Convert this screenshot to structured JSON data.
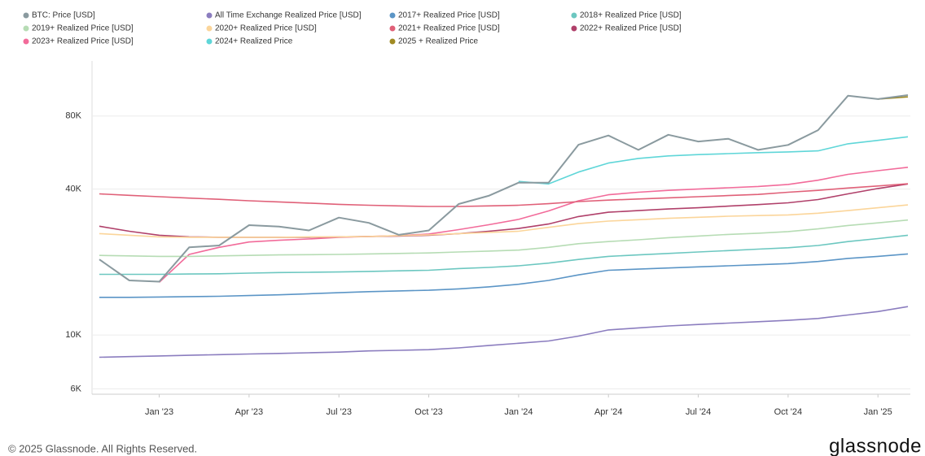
{
  "chart_data": {
    "type": "line",
    "yscale": "log",
    "grid": true,
    "legend": "top",
    "x": [
      "2022-11",
      "2022-12",
      "2023-01",
      "2023-02",
      "2023-03",
      "2023-04",
      "2023-05",
      "2023-06",
      "2023-07",
      "2023-08",
      "2023-09",
      "2023-10",
      "2023-11",
      "2023-12",
      "2024-01",
      "2024-02",
      "2024-03",
      "2024-04",
      "2024-05",
      "2024-06",
      "2024-07",
      "2024-08",
      "2024-09",
      "2024-10",
      "2024-11",
      "2024-12",
      "2025-01",
      "2025-02"
    ],
    "xlim": [
      "2022-11",
      "2025-02"
    ],
    "xticks": [
      {
        "value": "2023-01",
        "label": "Jan '23"
      },
      {
        "value": "2023-04",
        "label": "Apr '23"
      },
      {
        "value": "2023-07",
        "label": "Jul '23"
      },
      {
        "value": "2023-10",
        "label": "Oct '23"
      },
      {
        "value": "2024-01",
        "label": "Jan '24"
      },
      {
        "value": "2024-04",
        "label": "Apr '24"
      },
      {
        "value": "2024-07",
        "label": "Jul '24"
      },
      {
        "value": "2024-10",
        "label": "Oct '24"
      },
      {
        "value": "2025-01",
        "label": "Jan '25"
      }
    ],
    "ylim": [
      5700,
      135000
    ],
    "yticks": [
      {
        "value": 6000,
        "label": "6K"
      },
      {
        "value": 10000,
        "label": "10K"
      },
      {
        "value": 40000,
        "label": "40K"
      },
      {
        "value": 80000,
        "label": "80K"
      }
    ],
    "series": [
      {
        "name": "BTC: Price [USD]",
        "color": "#8a9a9f",
        "values": [
          20500,
          16800,
          16600,
          23000,
          23400,
          28400,
          28000,
          27000,
          30500,
          29000,
          25900,
          27000,
          34700,
          37500,
          42500,
          42500,
          60900,
          66500,
          58000,
          67000,
          62800,
          64500,
          58000,
          60800,
          70000,
          97000,
          94000,
          97600
        ]
      },
      {
        "name": "All Time Exchange Realized Price [USD]",
        "color": "#8b7dbf",
        "values": [
          8100,
          8150,
          8200,
          8250,
          8300,
          8350,
          8400,
          8450,
          8500,
          8600,
          8650,
          8700,
          8850,
          9050,
          9250,
          9450,
          9900,
          10500,
          10700,
          10900,
          11050,
          11200,
          11350,
          11500,
          11700,
          12100,
          12500,
          13100
        ]
      },
      {
        "name": "2017+ Realized Price [USD]",
        "color": "#5b95c6",
        "values": [
          14300,
          14300,
          14350,
          14400,
          14450,
          14550,
          14650,
          14800,
          14950,
          15100,
          15200,
          15300,
          15500,
          15800,
          16200,
          16800,
          17700,
          18500,
          18700,
          18900,
          19100,
          19300,
          19500,
          19700,
          20100,
          20700,
          21100,
          21600
        ]
      },
      {
        "name": "2018+ Realized Price [USD]",
        "color": "#6cc7c0",
        "values": [
          17800,
          17800,
          17800,
          17850,
          17900,
          18000,
          18100,
          18150,
          18200,
          18300,
          18400,
          18500,
          18800,
          19000,
          19300,
          19800,
          20500,
          21100,
          21400,
          21700,
          22000,
          22300,
          22600,
          22900,
          23400,
          24300,
          25000,
          25800
        ]
      },
      {
        "name": "2019+ Realized Price [USD]",
        "color": "#b6dcb4",
        "values": [
          21300,
          21200,
          21100,
          21100,
          21200,
          21300,
          21400,
          21450,
          21500,
          21600,
          21700,
          21800,
          22000,
          22200,
          22400,
          23000,
          23800,
          24300,
          24700,
          25200,
          25600,
          26000,
          26300,
          26700,
          27400,
          28300,
          29000,
          29800
        ]
      },
      {
        "name": "2020+ Realized Price [USD]",
        "color": "#fbd59a",
        "values": [
          26200,
          25800,
          25400,
          25300,
          25300,
          25300,
          25300,
          25400,
          25400,
          25500,
          25700,
          25900,
          26200,
          26500,
          26800,
          27800,
          28800,
          29500,
          29900,
          30300,
          30600,
          30900,
          31100,
          31300,
          31800,
          32600,
          33500,
          34400
        ]
      },
      {
        "name": "2021+ Realized Price [USD]",
        "color": "#e06078",
        "values": [
          38200,
          37700,
          37200,
          36700,
          36300,
          35800,
          35400,
          35000,
          34600,
          34300,
          34100,
          33900,
          33900,
          34100,
          34300,
          34800,
          35500,
          36000,
          36400,
          36800,
          37200,
          37600,
          38000,
          38800,
          39500,
          40400,
          41200,
          42100
        ]
      },
      {
        "name": "2022+ Realized Price [USD]",
        "color": "#b0406a",
        "values": [
          28100,
          26800,
          25800,
          25400,
          25300,
          25300,
          25300,
          25300,
          25400,
          25500,
          25600,
          25800,
          26200,
          26800,
          27500,
          28700,
          30800,
          32100,
          32600,
          33100,
          33500,
          34000,
          34500,
          35100,
          36200,
          38200,
          40200,
          42000
        ]
      },
      {
        "name": "2023+ Realized Price [USD]",
        "color": "#f26b9a",
        "values": [
          null,
          null,
          16500,
          21500,
          23000,
          24200,
          24600,
          24900,
          25300,
          25500,
          25700,
          26100,
          27200,
          28500,
          30000,
          32500,
          35800,
          37900,
          38800,
          39500,
          40000,
          40500,
          41000,
          41800,
          43500,
          46000,
          47600,
          49200
        ]
      },
      {
        "name": "2024+ Realized Price",
        "color": "#5fd6d8",
        "values": [
          null,
          null,
          null,
          null,
          null,
          null,
          null,
          null,
          null,
          null,
          null,
          null,
          null,
          null,
          43000,
          42000,
          47000,
          51200,
          53500,
          54800,
          55500,
          56000,
          56500,
          56900,
          57500,
          61500,
          63500,
          65700
        ]
      },
      {
        "name": "2025 + Realized Price",
        "color": "#a08a22",
        "values": [
          null,
          null,
          null,
          null,
          null,
          null,
          null,
          null,
          null,
          null,
          null,
          null,
          null,
          null,
          null,
          null,
          null,
          null,
          null,
          null,
          null,
          null,
          null,
          null,
          null,
          null,
          94000,
          96000
        ]
      }
    ]
  },
  "footer": {
    "copyright": "© 2025 Glassnode. All Rights Reserved.",
    "logo": "glassnode"
  }
}
